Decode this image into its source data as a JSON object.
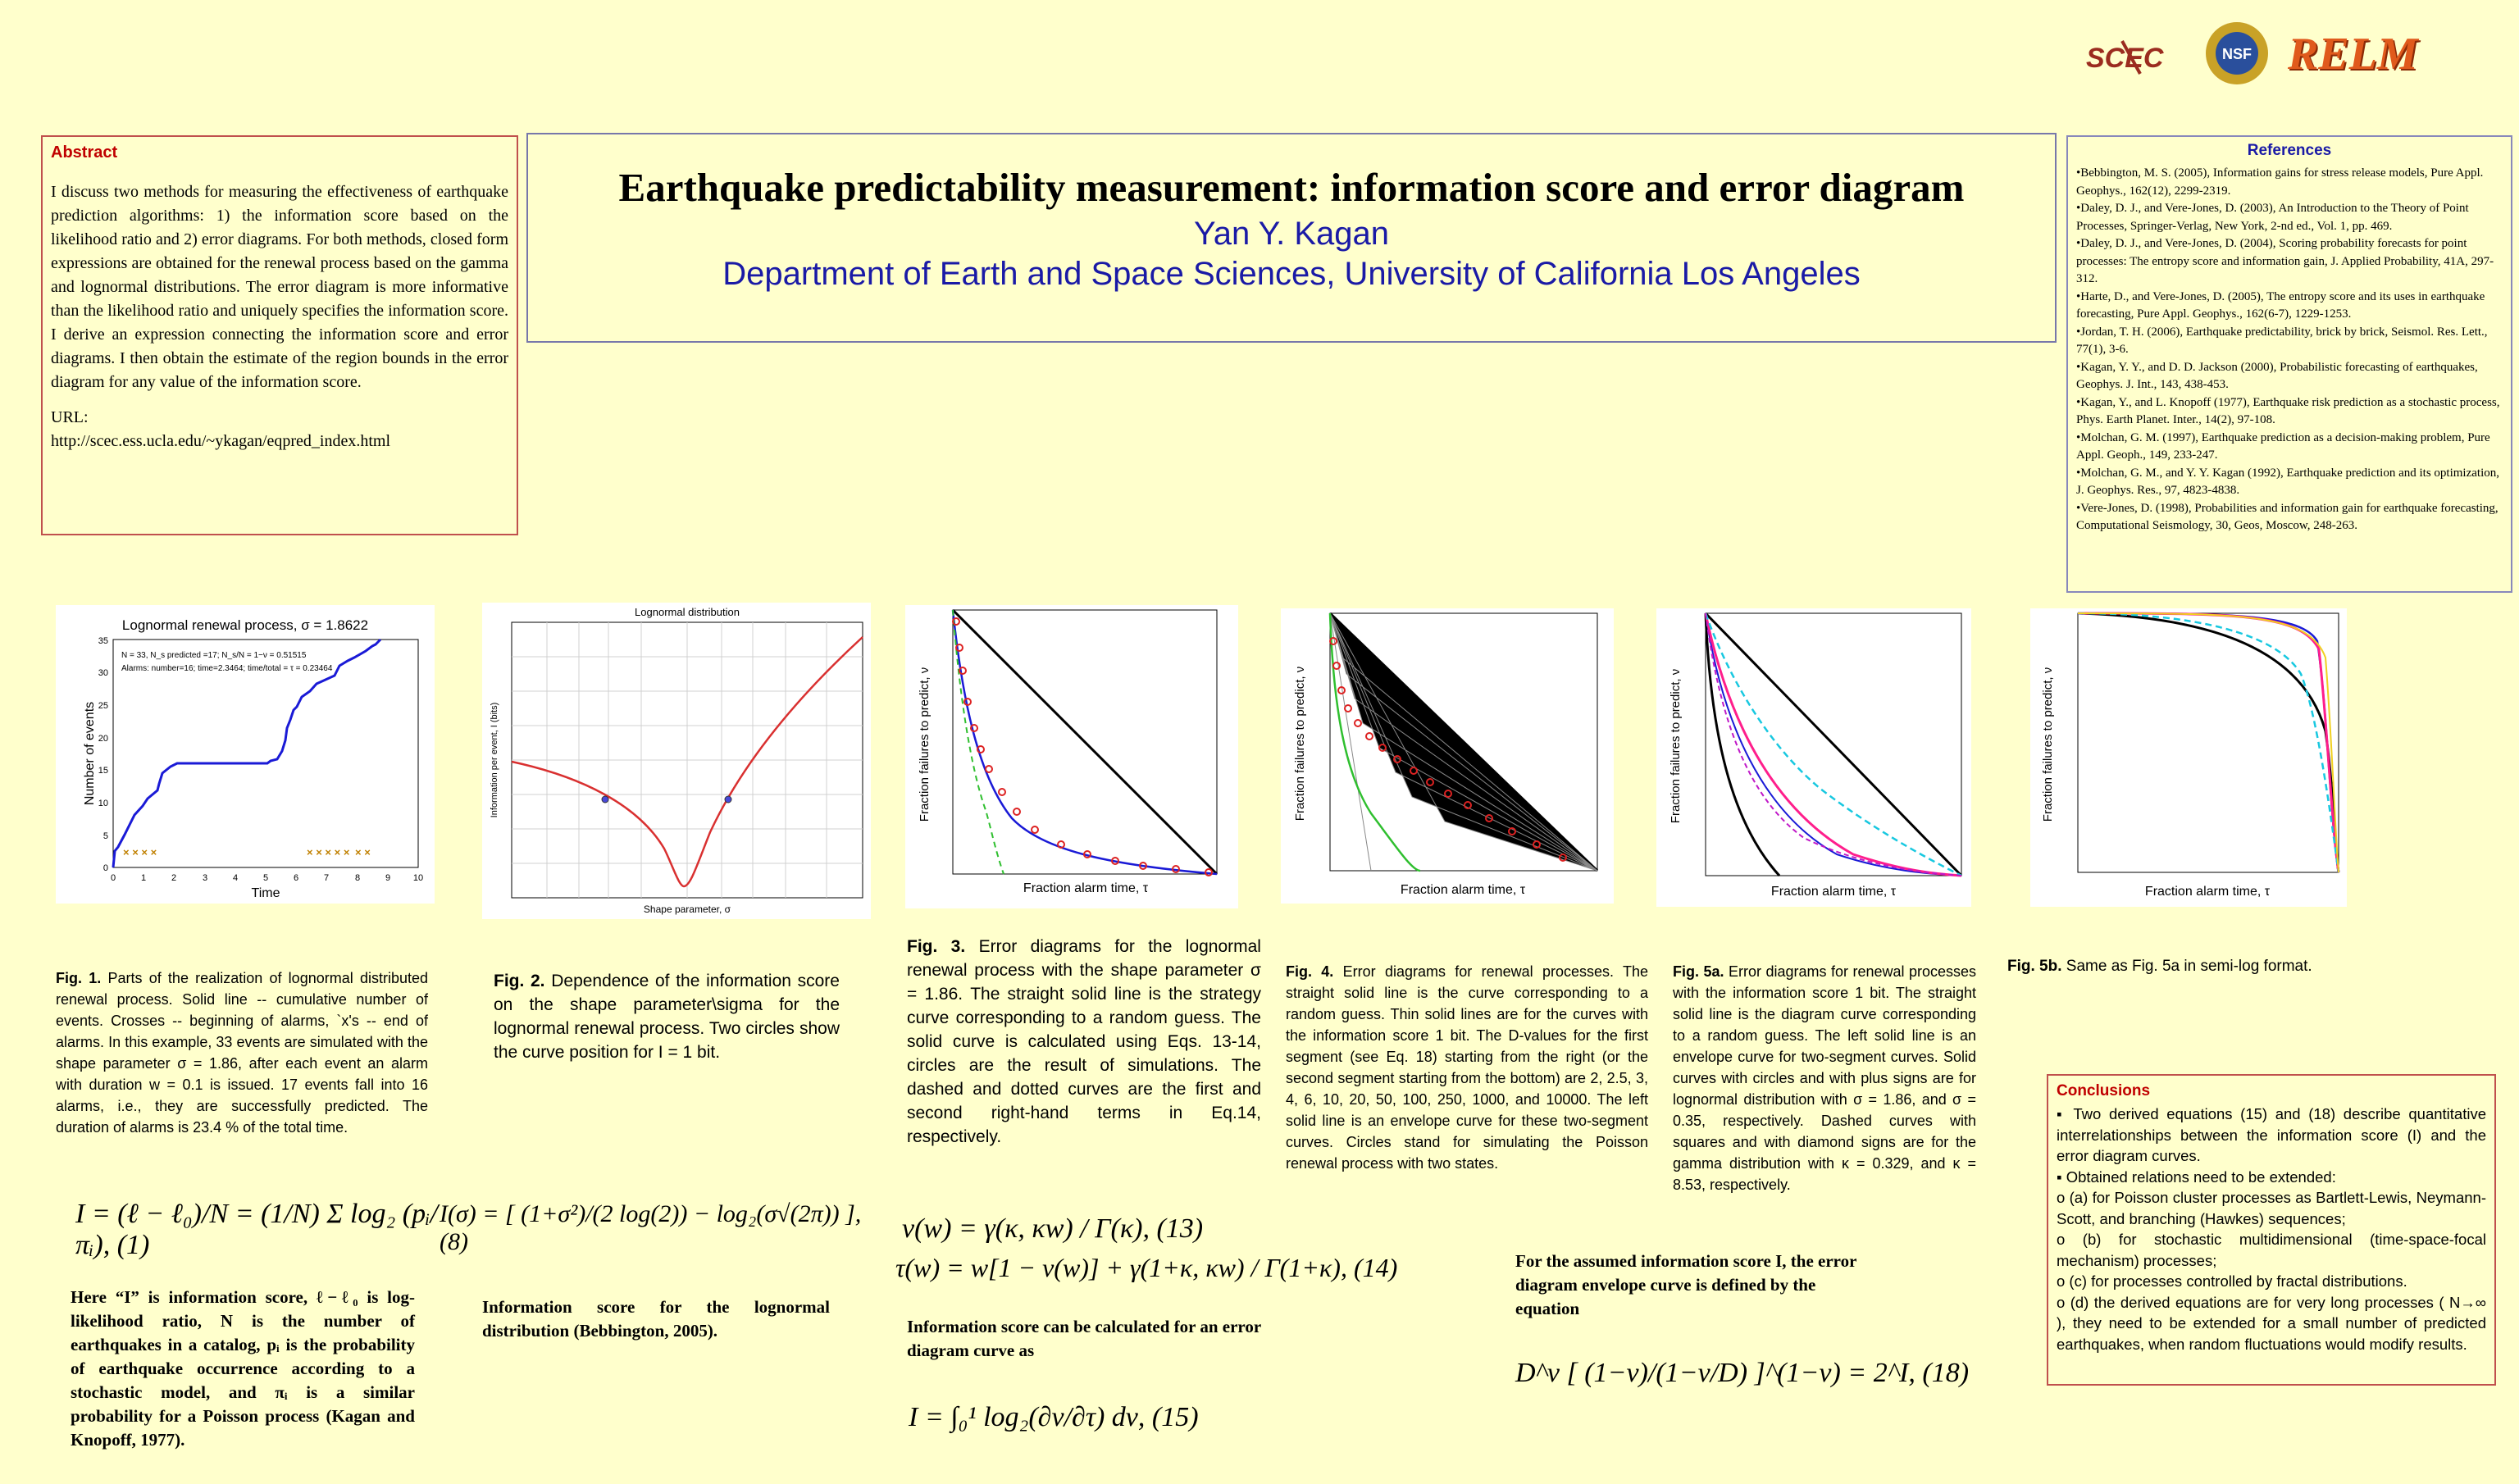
{
  "logos": {
    "scec": "SCEC",
    "nsf": "NSF",
    "relm": "RELM"
  },
  "abstract": {
    "heading": "Abstract",
    "body": "I discuss two methods for measuring the effectiveness of earthquake prediction algorithms: 1) the information score based on the likelihood ratio and 2) error diagrams. For both methods, closed form expressions are obtained for the renewal process based on the gamma and lognormal distributions. The error diagram is more informative than the likelihood ratio and uniquely specifies the information score. I derive an expression connecting the information score and error diagrams. I then obtain the estimate of the region bounds in the error diagram for any value of the information score.",
    "url_label": "URL:",
    "url": "http://scec.ess.ucla.edu/~ykagan/eqpred_index.html"
  },
  "title": {
    "main": "Earthquake predictability measurement: information score and error diagram",
    "author": "Yan Y. Kagan",
    "affiliation": "Department of Earth and Space Sciences, University of California Los Angeles"
  },
  "references": {
    "heading": "References",
    "items": [
      "•Bebbington, M. S. (2005), Information gains for stress release models, Pure Appl. Geophys., 162(12), 2299-2319.",
      "•Daley, D. J., and Vere-Jones, D. (2003), An Introduction to the Theory of Point Processes, Springer-Verlag, New York, 2-nd ed., Vol. 1, pp. 469.",
      "•Daley, D. J., and Vere-Jones, D. (2004), Scoring probability forecasts for point processes: The entropy score and information gain, J. Applied Probability, 41A, 297-312.",
      "•Harte, D., and Vere-Jones, D. (2005), The entropy score and its uses in earthquake forecasting, Pure Appl. Geophys., 162(6-7), 1229-1253.",
      "•Jordan, T. H. (2006), Earthquake predictability, brick by brick, Seismol. Res. Lett., 77(1), 3-6.",
      "•Kagan, Y. Y., and D. D. Jackson (2000), Probabilistic forecasting of earthquakes, Geophys. J. Int., 143, 438-453.",
      "•Kagan, Y., and L. Knopoff (1977), Earthquake risk prediction as a stochastic process, Phys. Earth Planet. Inter., 14(2), 97-108.",
      "•Molchan, G. M. (1997), Earthquake prediction as a decision-making problem, Pure Appl. Geoph., 149, 233-247.",
      "•Molchan, G. M., and Y. Y. Kagan (1992), Earthquake prediction and its optimization, J. Geophys. Res., 97, 4823-4838.",
      "•Vere-Jones, D. (1998), Probabilities and information gain for earthquake forecasting, Computational Seismology, 30, Geos, Moscow, 248-263."
    ]
  },
  "fig1": {
    "title": "Lognormal renewal process, σ = 1.8622",
    "legend1": "N = 33, N_s predicted =17; N_s/N = 1−ν = 0.51515",
    "legend2": "Alarms: number=16; time=2.3464; time/total = τ = 0.23464",
    "xlabel": "Time",
    "ylabel": "Number of events",
    "xticks": [
      "0",
      "1",
      "2",
      "3",
      "4",
      "5",
      "6",
      "7",
      "8",
      "9",
      "10"
    ],
    "yticks": [
      "0",
      "5",
      "10",
      "15",
      "20",
      "25",
      "30",
      "35"
    ],
    "caption_label": "Fig. 1.",
    "caption": "Parts of the realization of lognormal distributed renewal process. Solid line -- cumulative number of events. Crosses -- beginning of alarms, `x's -- end of alarms. In this example, 33 events are simulated with the shape parameter σ = 1.86, after each event an alarm with duration w = 0.1 is issued. 17 events fall into 16 alarms, i.e., they are successfully predicted. The duration of alarms is 23.4 % of the total time."
  },
  "fig2": {
    "title": "Lognormal distribution",
    "xlabel": "Shape parameter, σ",
    "ylabel": "Information per event, I (bits)",
    "caption_label": "Fig. 2.",
    "caption": "Dependence of the information score on the shape parameter\\sigma for the lognormal renewal process. Two circles show the curve position for I = 1 bit."
  },
  "fig3": {
    "xlabel": "Fraction alarm time, τ",
    "ylabel": "Fraction failures to predict, ν",
    "caption_label": "Fig. 3.",
    "caption": "Error diagrams for the lognormal renewal process with the shape parameter σ = 1.86. The straight solid line is the strategy curve corresponding to a random guess. The solid curve is calculated using Eqs. 13-14, circles are the result of simulations. The dashed and dotted curves are the first and second right-hand terms in Eq.14, respectively."
  },
  "fig4": {
    "xlabel": "Fraction alarm time, τ",
    "ylabel": "Fraction failures to predict, ν",
    "caption_label": "Fig. 4.",
    "caption": "Error diagrams for renewal processes. The straight solid line is the curve corresponding to a random guess. Thin solid lines are for the curves with the information score 1 bit. The D-values for the first segment (see Eq. 18) starting from the right (or the second segment starting from the bottom) are 2, 2.5, 3, 4, 6, 10, 20, 50, 100, 250, 1000, and 10000. The left solid line is an envelope curve for these two-segment curves. Circles stand for simulating the Poisson renewal process with two states."
  },
  "fig5a": {
    "xlabel": "Fraction alarm time, τ",
    "ylabel": "Fraction failures to predict, ν",
    "caption_label": "Fig. 5a.",
    "caption": "Error diagrams for renewal processes with the information score 1 bit. The straight solid line is the diagram curve corresponding to a random guess. The left solid line is an envelope curve for two-segment curves. Solid curves with circles and with plus signs are for lognormal distribution with σ = 1.86, and σ = 0.35, respectively. Dashed curves with squares and with diamond signs are for the gamma distribution with κ = 0.329, and κ = 8.53, respectively."
  },
  "fig5b": {
    "xlabel": "Fraction alarm time, τ",
    "ylabel": "Fraction failures to predict, ν",
    "caption_label": "Fig. 5b.",
    "caption": "Same as Fig. 5a in semi-log format."
  },
  "text": {
    "info_def": "Here “I” is information score, ℓ−ℓ₀ is log-likelihood ratio, N is the number of earthquakes in a catalog, pᵢ is the probability of earthquake occurrence according to a stochastic model, and πᵢ is a similar probability for a Poisson process (Kagan and Knopoff, 1977).",
    "lognormal_info": "Information score for the lognormal distribution (Bebbington, 2005).",
    "info_calc": "Information score can be calculated for an error diagram curve as",
    "envelope": "For the assumed information score I, the error diagram envelope curve is defined by the equation"
  },
  "equations": {
    "eq1": "I = (ℓ − ℓ₀)/N = (1/N) Σ log₂ (pᵢ/πᵢ), (1)",
    "eq8": "I(σ) = [ (1+σ²)/(2 log(2)) − log₂(σ√(2π)) ], (8)",
    "eq13": "ν(w) = γ(κ, κw) / Γ(κ), (13)",
    "eq14": "τ(w) = w[1 − ν(w)] + γ(1+κ, κw) / Γ(1+κ), (14)",
    "eq15": "I = ∫₀¹ log₂(∂ν/∂τ) dν, (15)",
    "eq18": "D^ν [ (1−ν)/(1−ν/D) ]^(1−ν) = 2^I, (18)"
  },
  "conclusions": {
    "heading": "Conclusions",
    "items": [
      "▪ Two derived equations (15) and (18) describe quantitative interrelationships between the information score (I) and the error diagram curves.",
      "▪ Obtained relations need to be extended:",
      "o (a) for Poisson cluster processes as Bartlett-Lewis, Neymann-Scott, and branching (Hawkes) sequences;",
      "o (b) for stochastic multidimensional (time-space-focal mechanism) processes;",
      "o (c) for processes controlled by fractal distributions.",
      "o (d) the derived equations are for very long processes ( N→∞ ), they need to be extended for a small number of predicted earthquakes, when random fluctuations would modify results."
    ]
  },
  "colors": {
    "background": "#ffffcc",
    "box_border": "#c0504d",
    "heading_red": "#c00000",
    "title_blue": "#1a1aa6"
  }
}
